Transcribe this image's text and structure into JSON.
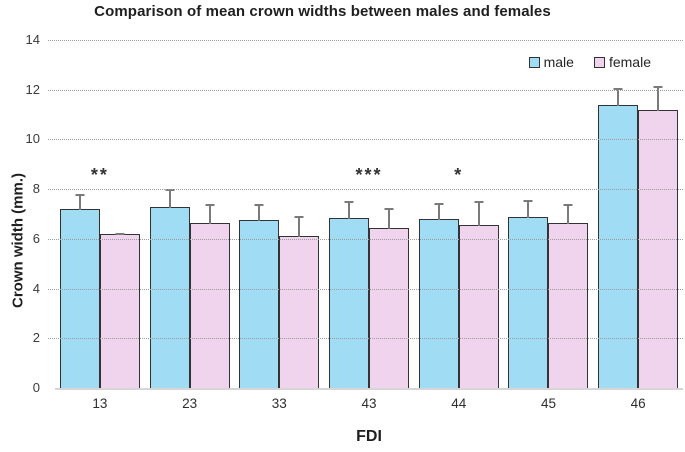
{
  "figure": {
    "title": "Comparison of mean crown widths between males and females",
    "x_axis_title": "FDI",
    "y_axis_title": "Crown width (mm.)"
  },
  "chart_data": {
    "type": "bar",
    "title": "Comparison of mean crown widths between males and females",
    "xlabel": "FDI",
    "ylabel": "Crown width (mm.)",
    "categories": [
      "13",
      "23",
      "33",
      "43",
      "44",
      "45",
      "46"
    ],
    "series": [
      {
        "name": "male",
        "color": "#A0DCF3",
        "values": [
          7.2,
          7.3,
          6.75,
          6.85,
          6.8,
          6.9,
          11.4
        ],
        "errors": [
          0.65,
          0.75,
          0.7,
          0.7,
          0.7,
          0.7,
          0.7
        ]
      },
      {
        "name": "female",
        "color": "#F0D4ED",
        "values": [
          6.2,
          6.65,
          6.1,
          6.45,
          6.55,
          6.65,
          11.2
        ],
        "errors": [
          0.08,
          0.8,
          0.85,
          0.85,
          1.0,
          0.8,
          1.0
        ]
      }
    ],
    "ylim": [
      0,
      14
    ],
    "ytick_step": 2,
    "yticks": [
      0,
      2,
      4,
      6,
      8,
      10,
      12,
      14
    ],
    "grid": "horizontal-dotted",
    "legend_position": "top-right-inside",
    "annotations": [
      {
        "category": "13",
        "text": "**"
      },
      {
        "category": "43",
        "text": "***"
      },
      {
        "category": "44",
        "text": "*"
      }
    ],
    "annotation_y": 8.3,
    "colors": {
      "male_fill": "#A0DCF3",
      "female_fill": "#F0D4ED",
      "bar_border": "#333333",
      "error_bar": "#7a7a7a",
      "gridline": "#9c9c9c",
      "baseline": "#d6d6d6",
      "text": "#262626"
    }
  }
}
